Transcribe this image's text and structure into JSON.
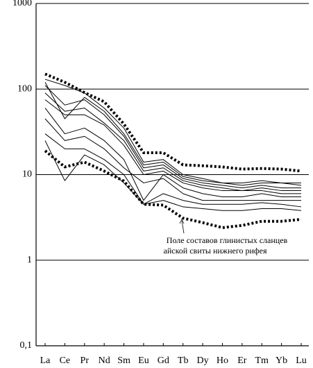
{
  "chart_data": {
    "type": "line",
    "categories": [
      "La",
      "Ce",
      "Pr",
      "Nd",
      "Sm",
      "Eu",
      "Gd",
      "Tb",
      "Dy",
      "Ho",
      "Er",
      "Tm",
      "Yb",
      "Lu"
    ],
    "log_scale": true,
    "grid": true,
    "ylim": [
      0.1,
      1000
    ],
    "yticks": [
      {
        "value": 0.1,
        "label": "0,1"
      },
      1,
      10,
      100,
      1000
    ],
    "annotation": [
      "Поле составов глинистых сланцев",
      "айской свиты нижнего рифея"
    ],
    "series": [
      {
        "color": "#000000",
        "line_style": "dotted",
        "values": [
          150,
          120,
          91,
          71,
          39,
          18,
          18,
          13,
          12.7,
          12.3,
          11.6,
          11.8,
          11.6,
          11
        ]
      },
      {
        "color": "#000000",
        "line_style": "dotted",
        "values": [
          19,
          12.3,
          14,
          11,
          8.4,
          4.5,
          4.4,
          3.1,
          2.75,
          2.4,
          2.55,
          2.85,
          2.85,
          3
        ]
      },
      {
        "color": "#000000",
        "line_style": "solid",
        "values": [
          130,
          110,
          90,
          60,
          35,
          14,
          15,
          10,
          9,
          8,
          8,
          8.5,
          8,
          8
        ]
      },
      {
        "color": "#000000",
        "line_style": "solid",
        "values": [
          120,
          45,
          80,
          55,
          30,
          13,
          14,
          9.5,
          8.5,
          8,
          7.5,
          8,
          8,
          7.5
        ]
      },
      {
        "color": "#000000",
        "line_style": "solid",
        "values": [
          110,
          65,
          75,
          50,
          28,
          12,
          13,
          9,
          8,
          7.5,
          7,
          7.5,
          7,
          7
        ]
      },
      {
        "color": "#000000",
        "line_style": "solid",
        "values": [
          90,
          55,
          60,
          40,
          25,
          11,
          12,
          8.5,
          7.5,
          7,
          6.5,
          7,
          6.5,
          6.5
        ]
      },
      {
        "color": "#000000",
        "line_style": "solid",
        "values": [
          75,
          50,
          50,
          38,
          22,
          10,
          11,
          8,
          7,
          6.5,
          6.5,
          6.5,
          6,
          6
        ]
      },
      {
        "color": "#000000",
        "line_style": "solid",
        "values": [
          60,
          30,
          35,
          25,
          15,
          5,
          10,
          7,
          6,
          5.5,
          5.5,
          6,
          5.5,
          5.5
        ]
      },
      {
        "color": "#000000",
        "line_style": "solid",
        "values": [
          45,
          25,
          28,
          20,
          12,
          8,
          9,
          6,
          5,
          5,
          5,
          5,
          5,
          5
        ]
      },
      {
        "color": "#000000",
        "line_style": "solid",
        "values": [
          30,
          20,
          20,
          15,
          10,
          4.5,
          6,
          5,
          4.5,
          4.5,
          4.5,
          4.7,
          4.5,
          4.2
        ]
      },
      {
        "color": "#000000",
        "line_style": "solid",
        "values": [
          25,
          8.5,
          17,
          13,
          8,
          4.5,
          5,
          4.2,
          4,
          3.8,
          3.8,
          4,
          4,
          3.8
        ]
      }
    ]
  }
}
